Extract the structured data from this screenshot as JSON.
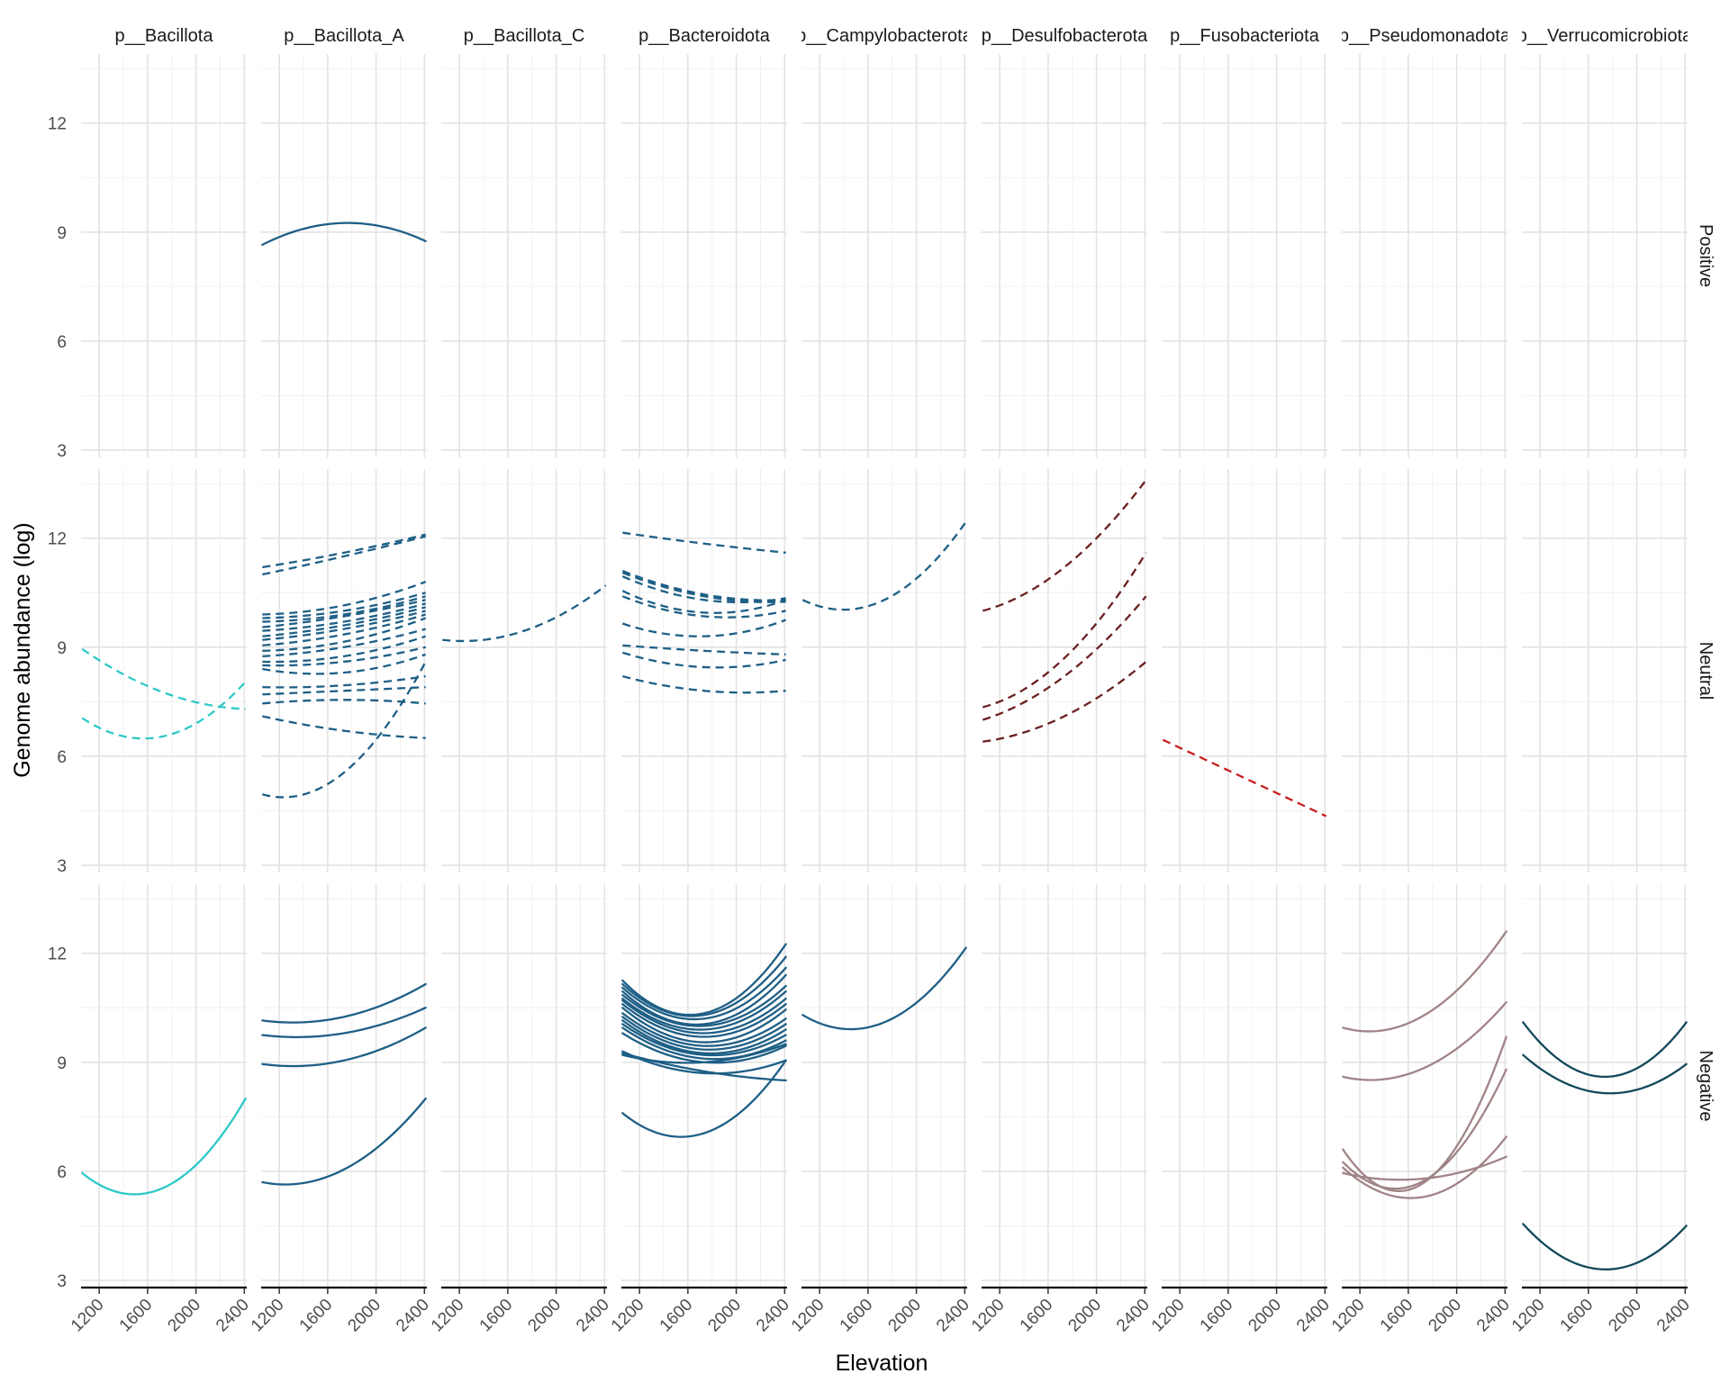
{
  "chart_data": {
    "type": "line",
    "xlabel": "Elevation",
    "ylabel": "Genome abundance (log)",
    "xlim": [
      1050,
      2420
    ],
    "ylim": [
      2.8,
      13.9
    ],
    "x_ticks": [
      1200,
      1600,
      2000,
      2400
    ],
    "y_ticks": [
      3,
      6,
      9,
      12
    ],
    "columns": [
      "p__Bacillota",
      "p__Bacillota_A",
      "p__Bacillota_C",
      "p__Bacteroidota",
      "p__Campylobacterota",
      "p__Desulfobacterota",
      "p__Fusobacteriota",
      "p__Pseudomonadota",
      "p__Verrucomicrobiota"
    ],
    "rows": [
      "Positive",
      "Neutral",
      "Negative"
    ],
    "column_colors": [
      "#2ec8c8",
      "#1e5f86",
      "#1e5f86",
      "#1e5f86",
      "#1e5f86",
      "#6b2022",
      "#c8201f",
      "#a08486",
      "#12495a"
    ],
    "x_range": [
      1060,
      2410
    ],
    "panels": [
      {
        "column": 1,
        "row": 0,
        "dashed": false,
        "curves": [
          [
            8.65,
            9.25,
            8.75
          ]
        ]
      },
      {
        "column": 0,
        "row": 1,
        "dashed": true,
        "curves": [
          [
            8.95,
            7.75,
            7.3
          ],
          [
            7.05,
            6.55,
            8.05
          ]
        ]
      },
      {
        "column": 1,
        "row": 1,
        "dashed": true,
        "curves": [
          [
            11.2,
            11.6,
            12.1
          ],
          [
            11.0,
            11.5,
            12.05
          ],
          [
            9.9,
            10.15,
            10.8
          ],
          [
            9.8,
            10.0,
            10.5
          ],
          [
            9.7,
            9.9,
            10.4
          ],
          [
            9.55,
            9.85,
            10.3
          ],
          [
            9.45,
            9.7,
            10.2
          ],
          [
            9.3,
            9.6,
            10.1
          ],
          [
            9.2,
            9.5,
            10.0
          ],
          [
            9.05,
            9.35,
            9.9
          ],
          [
            8.9,
            9.15,
            9.8
          ],
          [
            8.75,
            9.0,
            9.5
          ],
          [
            8.6,
            8.75,
            9.3
          ],
          [
            8.5,
            8.6,
            9.0
          ],
          [
            8.4,
            8.3,
            8.8
          ],
          [
            7.9,
            7.95,
            8.2
          ],
          [
            7.7,
            7.8,
            7.9
          ],
          [
            7.45,
            7.55,
            7.45
          ],
          [
            7.1,
            6.7,
            6.5
          ],
          [
            4.95,
            5.55,
            8.6
          ]
        ]
      },
      {
        "column": 2,
        "row": 1,
        "dashed": true,
        "curves": [
          [
            9.2,
            9.45,
            10.7
          ]
        ]
      },
      {
        "column": 3,
        "row": 1,
        "dashed": true,
        "curves": [
          [
            12.15,
            11.85,
            11.6
          ],
          [
            11.1,
            10.45,
            10.3
          ],
          [
            11.05,
            10.4,
            10.25
          ],
          [
            10.95,
            10.3,
            10.35
          ],
          [
            10.55,
            9.95,
            10.3
          ],
          [
            10.4,
            9.85,
            10.0
          ],
          [
            9.65,
            9.3,
            9.75
          ],
          [
            9.05,
            8.9,
            8.8
          ],
          [
            8.85,
            8.45,
            8.65
          ],
          [
            8.2,
            7.8,
            7.8
          ]
        ]
      },
      {
        "column": 4,
        "row": 1,
        "dashed": true,
        "curves": [
          [
            10.3,
            10.3,
            12.45
          ]
        ]
      },
      {
        "column": 5,
        "row": 1,
        "dashed": true,
        "curves": [
          [
            10.0,
            11.2,
            13.6
          ],
          [
            7.35,
            8.7,
            11.6
          ],
          [
            7.0,
            8.2,
            10.4
          ],
          [
            6.4,
            7.1,
            8.6
          ]
        ]
      },
      {
        "column": 6,
        "row": 1,
        "dashed": true,
        "curves": [
          [
            6.45,
            5.4,
            4.35
          ]
        ]
      },
      {
        "column": 0,
        "row": 2,
        "dashed": false,
        "curves": [
          [
            5.95,
            5.55,
            8.0
          ]
        ]
      },
      {
        "column": 1,
        "row": 2,
        "dashed": false,
        "curves": [
          [
            10.15,
            10.25,
            11.15
          ],
          [
            9.75,
            9.8,
            10.5
          ],
          [
            8.95,
            9.05,
            9.95
          ],
          [
            5.7,
            6.05,
            8.0
          ]
        ]
      },
      {
        "column": 3,
        "row": 2,
        "dashed": false,
        "curves": [
          [
            11.25,
            10.35,
            12.25
          ],
          [
            11.15,
            10.3,
            11.9
          ],
          [
            11.05,
            10.2,
            11.6
          ],
          [
            10.95,
            10.05,
            11.4
          ],
          [
            10.85,
            10.0,
            11.1
          ],
          [
            10.75,
            9.9,
            10.95
          ],
          [
            10.7,
            9.8,
            10.75
          ],
          [
            10.6,
            9.7,
            10.6
          ],
          [
            10.5,
            9.55,
            10.45
          ],
          [
            10.35,
            9.45,
            10.2
          ],
          [
            10.25,
            9.35,
            10.05
          ],
          [
            10.15,
            9.25,
            9.9
          ],
          [
            10.05,
            9.2,
            9.75
          ],
          [
            9.95,
            9.1,
            9.6
          ],
          [
            9.8,
            9.0,
            9.45
          ],
          [
            9.3,
            8.7,
            9.05
          ],
          [
            9.25,
            8.75,
            8.5
          ],
          [
            9.2,
            9.0,
            9.5
          ],
          [
            7.6,
            7.05,
            9.05
          ]
        ]
      },
      {
        "column": 4,
        "row": 2,
        "dashed": false,
        "curves": [
          [
            10.3,
            10.1,
            12.15
          ]
        ]
      },
      {
        "column": 7,
        "row": 2,
        "dashed": false,
        "curves": [
          [
            9.95,
            10.3,
            12.6
          ],
          [
            8.6,
            8.85,
            10.65
          ],
          [
            6.6,
            5.7,
            9.7
          ],
          [
            6.25,
            5.75,
            8.8
          ],
          [
            6.1,
            5.3,
            6.95
          ],
          [
            5.95,
            5.8,
            6.4
          ]
        ]
      },
      {
        "column": 8,
        "row": 2,
        "dashed": false,
        "curves": [
          [
            10.1,
            8.6,
            10.1
          ],
          [
            9.2,
            8.15,
            8.95
          ],
          [
            4.55,
            3.3,
            4.5
          ]
        ]
      }
    ]
  }
}
